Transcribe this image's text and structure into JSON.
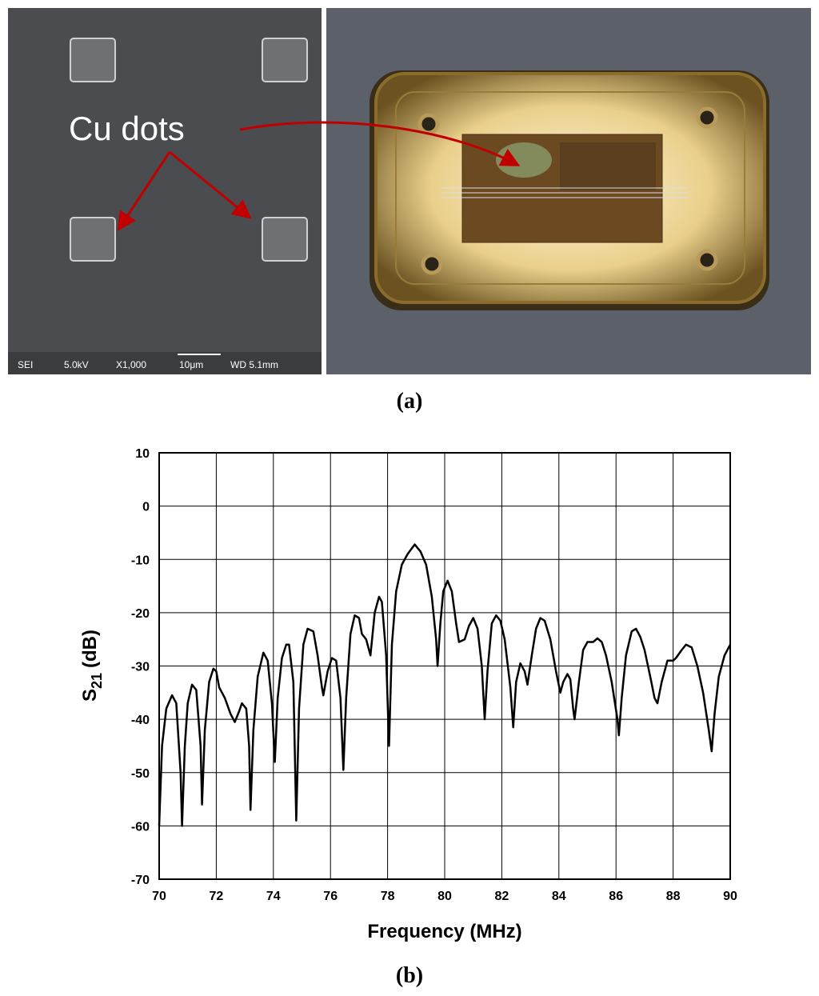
{
  "panel_a": {
    "label": "(a)",
    "sem_annotation": "Cu dots",
    "sem_info": [
      "SEI",
      "5.0kV",
      "X1,000",
      "10μm",
      "WD 5.1mm"
    ]
  },
  "chart_data": {
    "type": "line",
    "panel_label": "(b)",
    "xlabel": "Frequency (MHz)",
    "ylabel": {
      "base": "S",
      "subscript": "21",
      "unit": "(dB)"
    },
    "color": "#000000",
    "grid": true,
    "xlim": [
      70,
      90
    ],
    "xticks": [
      70,
      72,
      74,
      76,
      78,
      80,
      82,
      84,
      86,
      88,
      90
    ],
    "ylim": [
      -70,
      10
    ],
    "yticks": [
      10,
      0,
      -10,
      -20,
      -30,
      -40,
      -50,
      -60,
      -70
    ],
    "x": [
      70.0,
      70.1,
      70.25,
      70.45,
      70.6,
      70.75,
      70.8,
      70.9,
      71.0,
      71.15,
      71.3,
      71.45,
      71.5,
      71.6,
      71.75,
      71.9,
      72.0,
      72.1,
      72.3,
      72.5,
      72.65,
      72.8,
      72.9,
      73.05,
      73.15,
      73.2,
      73.3,
      73.45,
      73.65,
      73.8,
      73.95,
      74.05,
      74.15,
      74.3,
      74.45,
      74.55,
      74.7,
      74.8,
      74.9,
      75.05,
      75.2,
      75.4,
      75.55,
      75.7,
      75.75,
      75.9,
      76.05,
      76.2,
      76.35,
      76.45,
      76.55,
      76.7,
      76.85,
      77.0,
      77.1,
      77.25,
      77.4,
      77.55,
      77.7,
      77.8,
      77.95,
      78.05,
      78.15,
      78.3,
      78.5,
      78.7,
      78.95,
      79.15,
      79.35,
      79.55,
      79.7,
      79.75,
      79.85,
      79.95,
      80.1,
      80.25,
      80.4,
      80.5,
      80.7,
      80.85,
      81.0,
      81.15,
      81.3,
      81.4,
      81.5,
      81.65,
      81.8,
      81.95,
      82.1,
      82.3,
      82.4,
      82.5,
      82.65,
      82.8,
      82.9,
      83.05,
      83.2,
      83.35,
      83.5,
      83.7,
      83.9,
      84.05,
      84.15,
      84.3,
      84.4,
      84.5,
      84.55,
      84.7,
      84.85,
      85.0,
      85.2,
      85.35,
      85.5,
      85.65,
      85.85,
      86.05,
      86.1,
      86.2,
      86.35,
      86.55,
      86.7,
      86.85,
      87.0,
      87.2,
      87.35,
      87.45,
      87.6,
      87.8,
      88.0,
      88.1,
      88.3,
      88.45,
      88.65,
      88.85,
      89.05,
      89.25,
      89.35,
      89.45,
      89.6,
      89.8,
      90.0
    ],
    "values": [
      -60,
      -45,
      -38,
      -35.5,
      -37,
      -50,
      -60,
      -45,
      -37,
      -33.5,
      -34.5,
      -45,
      -56,
      -42,
      -33,
      -30.5,
      -31,
      -34,
      -36,
      -39,
      -40.5,
      -38.5,
      -37,
      -38,
      -45,
      -57,
      -42,
      -32,
      -27.5,
      -29,
      -37,
      -48,
      -36,
      -28.5,
      -26,
      -26,
      -33,
      -59,
      -38,
      -26,
      -23,
      -23.5,
      -28,
      -34,
      -35.5,
      -31,
      -28.5,
      -29,
      -36,
      -49.5,
      -36,
      -24,
      -20.5,
      -21,
      -24,
      -25,
      -28,
      -20,
      -17,
      -18,
      -28,
      -45,
      -26,
      -16,
      -11,
      -9,
      -7.2,
      -8.5,
      -11,
      -17,
      -25,
      -30,
      -22,
      -16,
      -14,
      -16,
      -22,
      -25.5,
      -25,
      -22.5,
      -21,
      -23,
      -30,
      -40,
      -31,
      -22,
      -20.5,
      -21.5,
      -25,
      -34,
      -41.5,
      -33,
      -29.5,
      -31,
      -33.5,
      -28,
      -23,
      -21,
      -21.5,
      -25,
      -31,
      -35,
      -33,
      -31.5,
      -32.5,
      -38,
      -40,
      -33,
      -27,
      -25.5,
      -25.5,
      -24.8,
      -25.5,
      -28,
      -33,
      -40,
      -43,
      -36,
      -28,
      -23.5,
      -23,
      -24.5,
      -27,
      -32,
      -36,
      -37,
      -33,
      -29,
      -29,
      -28.5,
      -27,
      -26,
      -26.5,
      -30,
      -35,
      -42,
      -46,
      -39,
      -32,
      -28,
      -26
    ]
  }
}
